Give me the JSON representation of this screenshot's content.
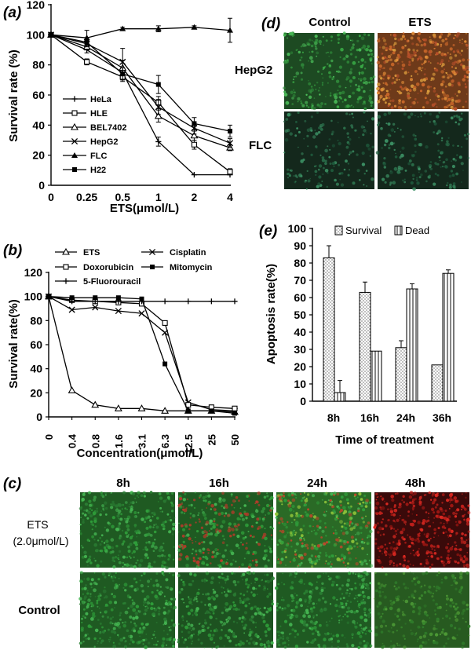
{
  "figure": {
    "panel_a_label": "(a)",
    "panel_b_label": "(b)",
    "panel_c_label": "(c)",
    "panel_d_label": "(d)",
    "panel_e_label": "(e)"
  },
  "chart_data": [
    {
      "id": "a",
      "type": "line",
      "title": "",
      "xlabel": "ETS(μmol/L)",
      "ylabel": "Survival rate (%)",
      "categories": [
        "0",
        "0.25",
        "0.5",
        "1",
        "2",
        "4"
      ],
      "yticks": [
        "0",
        "20",
        "40",
        "60",
        "80",
        "100",
        "120"
      ],
      "ylim": [
        0,
        120
      ],
      "legend_position": "bottom-left",
      "series": [
        {
          "name": "HeLa",
          "marker": "plus",
          "values": [
            100,
            90,
            75,
            29,
            7,
            7
          ],
          "errors": [
            0,
            2,
            2,
            3,
            0,
            0
          ]
        },
        {
          "name": "HLE",
          "marker": "open-square",
          "values": [
            100,
            82,
            72,
            55,
            27,
            9
          ],
          "errors": [
            0,
            2,
            3,
            4,
            3,
            2
          ]
        },
        {
          "name": "BEL7402",
          "marker": "open-triangle",
          "values": [
            100,
            92,
            78,
            46,
            33,
            25
          ],
          "errors": [
            0,
            2,
            5,
            4,
            3,
            2
          ]
        },
        {
          "name": "HepG2",
          "marker": "x",
          "values": [
            100,
            94,
            82,
            52,
            38,
            28
          ],
          "errors": [
            0,
            2,
            9,
            5,
            4,
            3
          ]
        },
        {
          "name": "FLC",
          "marker": "filled-triangle",
          "values": [
            100,
            98,
            104,
            104,
            105,
            103
          ],
          "errors": [
            0,
            5,
            1,
            2,
            1,
            8
          ]
        },
        {
          "name": "H22",
          "marker": "filled-square",
          "values": [
            100,
            95,
            74,
            67,
            41,
            36
          ],
          "errors": [
            0,
            2,
            4,
            6,
            4,
            4
          ]
        }
      ]
    },
    {
      "id": "b",
      "type": "line",
      "title": "",
      "xlabel": "Concentration(μmol/L)",
      "ylabel": "Survival rate(%)",
      "categories": [
        "0",
        "0.4",
        "0.8",
        "1.6",
        "3.1",
        "6.3",
        "12.5",
        "25",
        "50"
      ],
      "yticks": [
        "0",
        "20",
        "40",
        "60",
        "80",
        "100",
        "120"
      ],
      "ylim": [
        0,
        120
      ],
      "legend_position": "top",
      "series": [
        {
          "name": "ETS",
          "marker": "open-triangle",
          "values": [
            100,
            22,
            10,
            7,
            7,
            5,
            5,
            5,
            4
          ]
        },
        {
          "name": "Cisplatin",
          "marker": "x",
          "values": [
            100,
            89,
            91,
            88,
            86,
            70,
            12,
            6,
            5
          ]
        },
        {
          "name": "Doxorubicin",
          "marker": "open-square",
          "values": [
            100,
            97,
            96,
            95,
            94,
            78,
            10,
            8,
            7
          ]
        },
        {
          "name": "Mitomycin",
          "marker": "filled-square",
          "values": [
            100,
            99,
            99,
            99,
            98,
            44,
            5,
            5,
            3
          ]
        },
        {
          "name": "5-Fluorouracil",
          "marker": "plus",
          "values": [
            100,
            96,
            96,
            96,
            96,
            96,
            96,
            96,
            96
          ]
        }
      ]
    },
    {
      "id": "e",
      "type": "bar",
      "title": "",
      "xlabel": "Time of treatment",
      "ylabel": "Apoptosis rate(%)",
      "categories": [
        "8h",
        "16h",
        "24h",
        "36h"
      ],
      "yticks": [
        "0",
        "10",
        "20",
        "30",
        "40",
        "50",
        "60",
        "70",
        "80",
        "90",
        "100"
      ],
      "ylim": [
        0,
        100
      ],
      "legend_position": "top",
      "series": [
        {
          "name": "Survival",
          "pattern": "dots",
          "values": [
            83,
            63,
            31,
            21
          ],
          "errors": [
            7,
            6,
            4,
            0
          ]
        },
        {
          "name": "Dead",
          "pattern": "vertical-lines",
          "values": [
            5,
            29,
            65,
            74
          ],
          "errors": [
            7,
            0,
            3,
            2
          ]
        }
      ]
    }
  ],
  "panel_c": {
    "column_labels": [
      "8h",
      "16h",
      "24h",
      "48h"
    ],
    "row_labels": [
      "ETS",
      "(2.0μmol/L)",
      "Control"
    ]
  },
  "panel_d": {
    "column_labels": [
      "Control",
      "ETS"
    ],
    "row_labels": [
      "HepG2",
      "FLC"
    ]
  },
  "colors": {
    "green_cells": "#2f9d3a",
    "dark_cells": "#14281c",
    "red_cells": "#c0201b",
    "orange_cells": "#c9672a"
  }
}
